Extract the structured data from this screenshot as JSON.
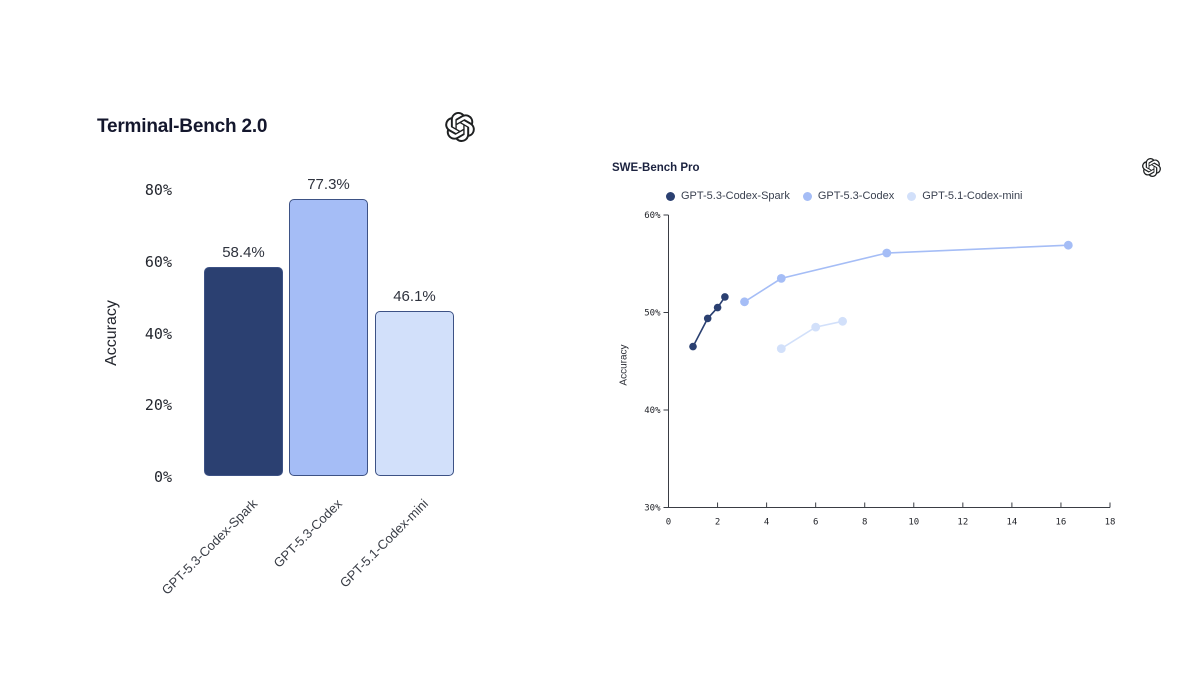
{
  "page": {
    "background": "#ffffff"
  },
  "branding": {
    "logo_icon": "openai-logo",
    "logo_color": "#1e2021"
  },
  "palette": {
    "navy": "#2b4071",
    "medium_blue": "#a5bdf6",
    "light_blue": "#d2e0fa",
    "bar_border": "#3d5285",
    "axis": "#3a3d44"
  },
  "chart_data": [
    {
      "type": "bar",
      "title": "Terminal-Bench 2.0",
      "xlabel": "",
      "ylabel": "Accuracy",
      "categories": [
        "GPT-5.3-Codex-Spark",
        "GPT-5.3-Codex",
        "GPT-5.1-Codex-mini"
      ],
      "values": [
        58.4,
        77.3,
        46.1
      ],
      "value_labels": [
        "58.4%",
        "77.3%",
        "46.1%"
      ],
      "bar_colors": [
        "#2b4071",
        "#a5bdf6",
        "#d2e0fa"
      ],
      "bar_border": "#3d5285",
      "ylim": [
        0,
        80
      ],
      "yticks": [
        "0%",
        "20%",
        "40%",
        "60%",
        "80%"
      ],
      "grid": false,
      "legend_position": "none"
    },
    {
      "type": "line",
      "title": "SWE-Bench Pro",
      "xlabel": "",
      "ylabel": "Accuracy",
      "xlim": [
        0,
        18
      ],
      "xticks": [
        0,
        2,
        4,
        6,
        8,
        10,
        12,
        14,
        16,
        18
      ],
      "ylim": [
        30,
        60
      ],
      "yticks": [
        30,
        40,
        50,
        60
      ],
      "ytick_labels": [
        "30%",
        "40%",
        "50%",
        "60%"
      ],
      "grid": false,
      "legend_position": "top",
      "legend": [
        "GPT-5.3-Codex-Spark",
        "GPT-5.3-Codex",
        "GPT-5.1-Codex-mini"
      ],
      "series": [
        {
          "name": "GPT-5.3-Codex",
          "color": "#a5bdf6",
          "dot_radius": 4.4,
          "points": [
            [
              3.1,
              51.1
            ],
            [
              4.6,
              53.5
            ],
            [
              8.9,
              56.1
            ],
            [
              16.3,
              56.9
            ]
          ]
        },
        {
          "name": "GPT-5.1-Codex-mini",
          "color": "#d2e0fa",
          "dot_radius": 4.4,
          "points": [
            [
              4.6,
              46.3
            ],
            [
              6.0,
              48.5
            ],
            [
              7.1,
              49.1
            ]
          ]
        },
        {
          "name": "GPT-5.3-Codex-Spark",
          "color": "#2b4071",
          "dot_radius": 3.8,
          "points": [
            [
              1.0,
              46.5
            ],
            [
              1.6,
              49.4
            ],
            [
              2.0,
              50.5
            ],
            [
              2.3,
              51.6
            ]
          ]
        }
      ],
      "legend_order": [
        "GPT-5.3-Codex-Spark",
        "GPT-5.3-Codex",
        "GPT-5.1-Codex-mini"
      ]
    }
  ]
}
